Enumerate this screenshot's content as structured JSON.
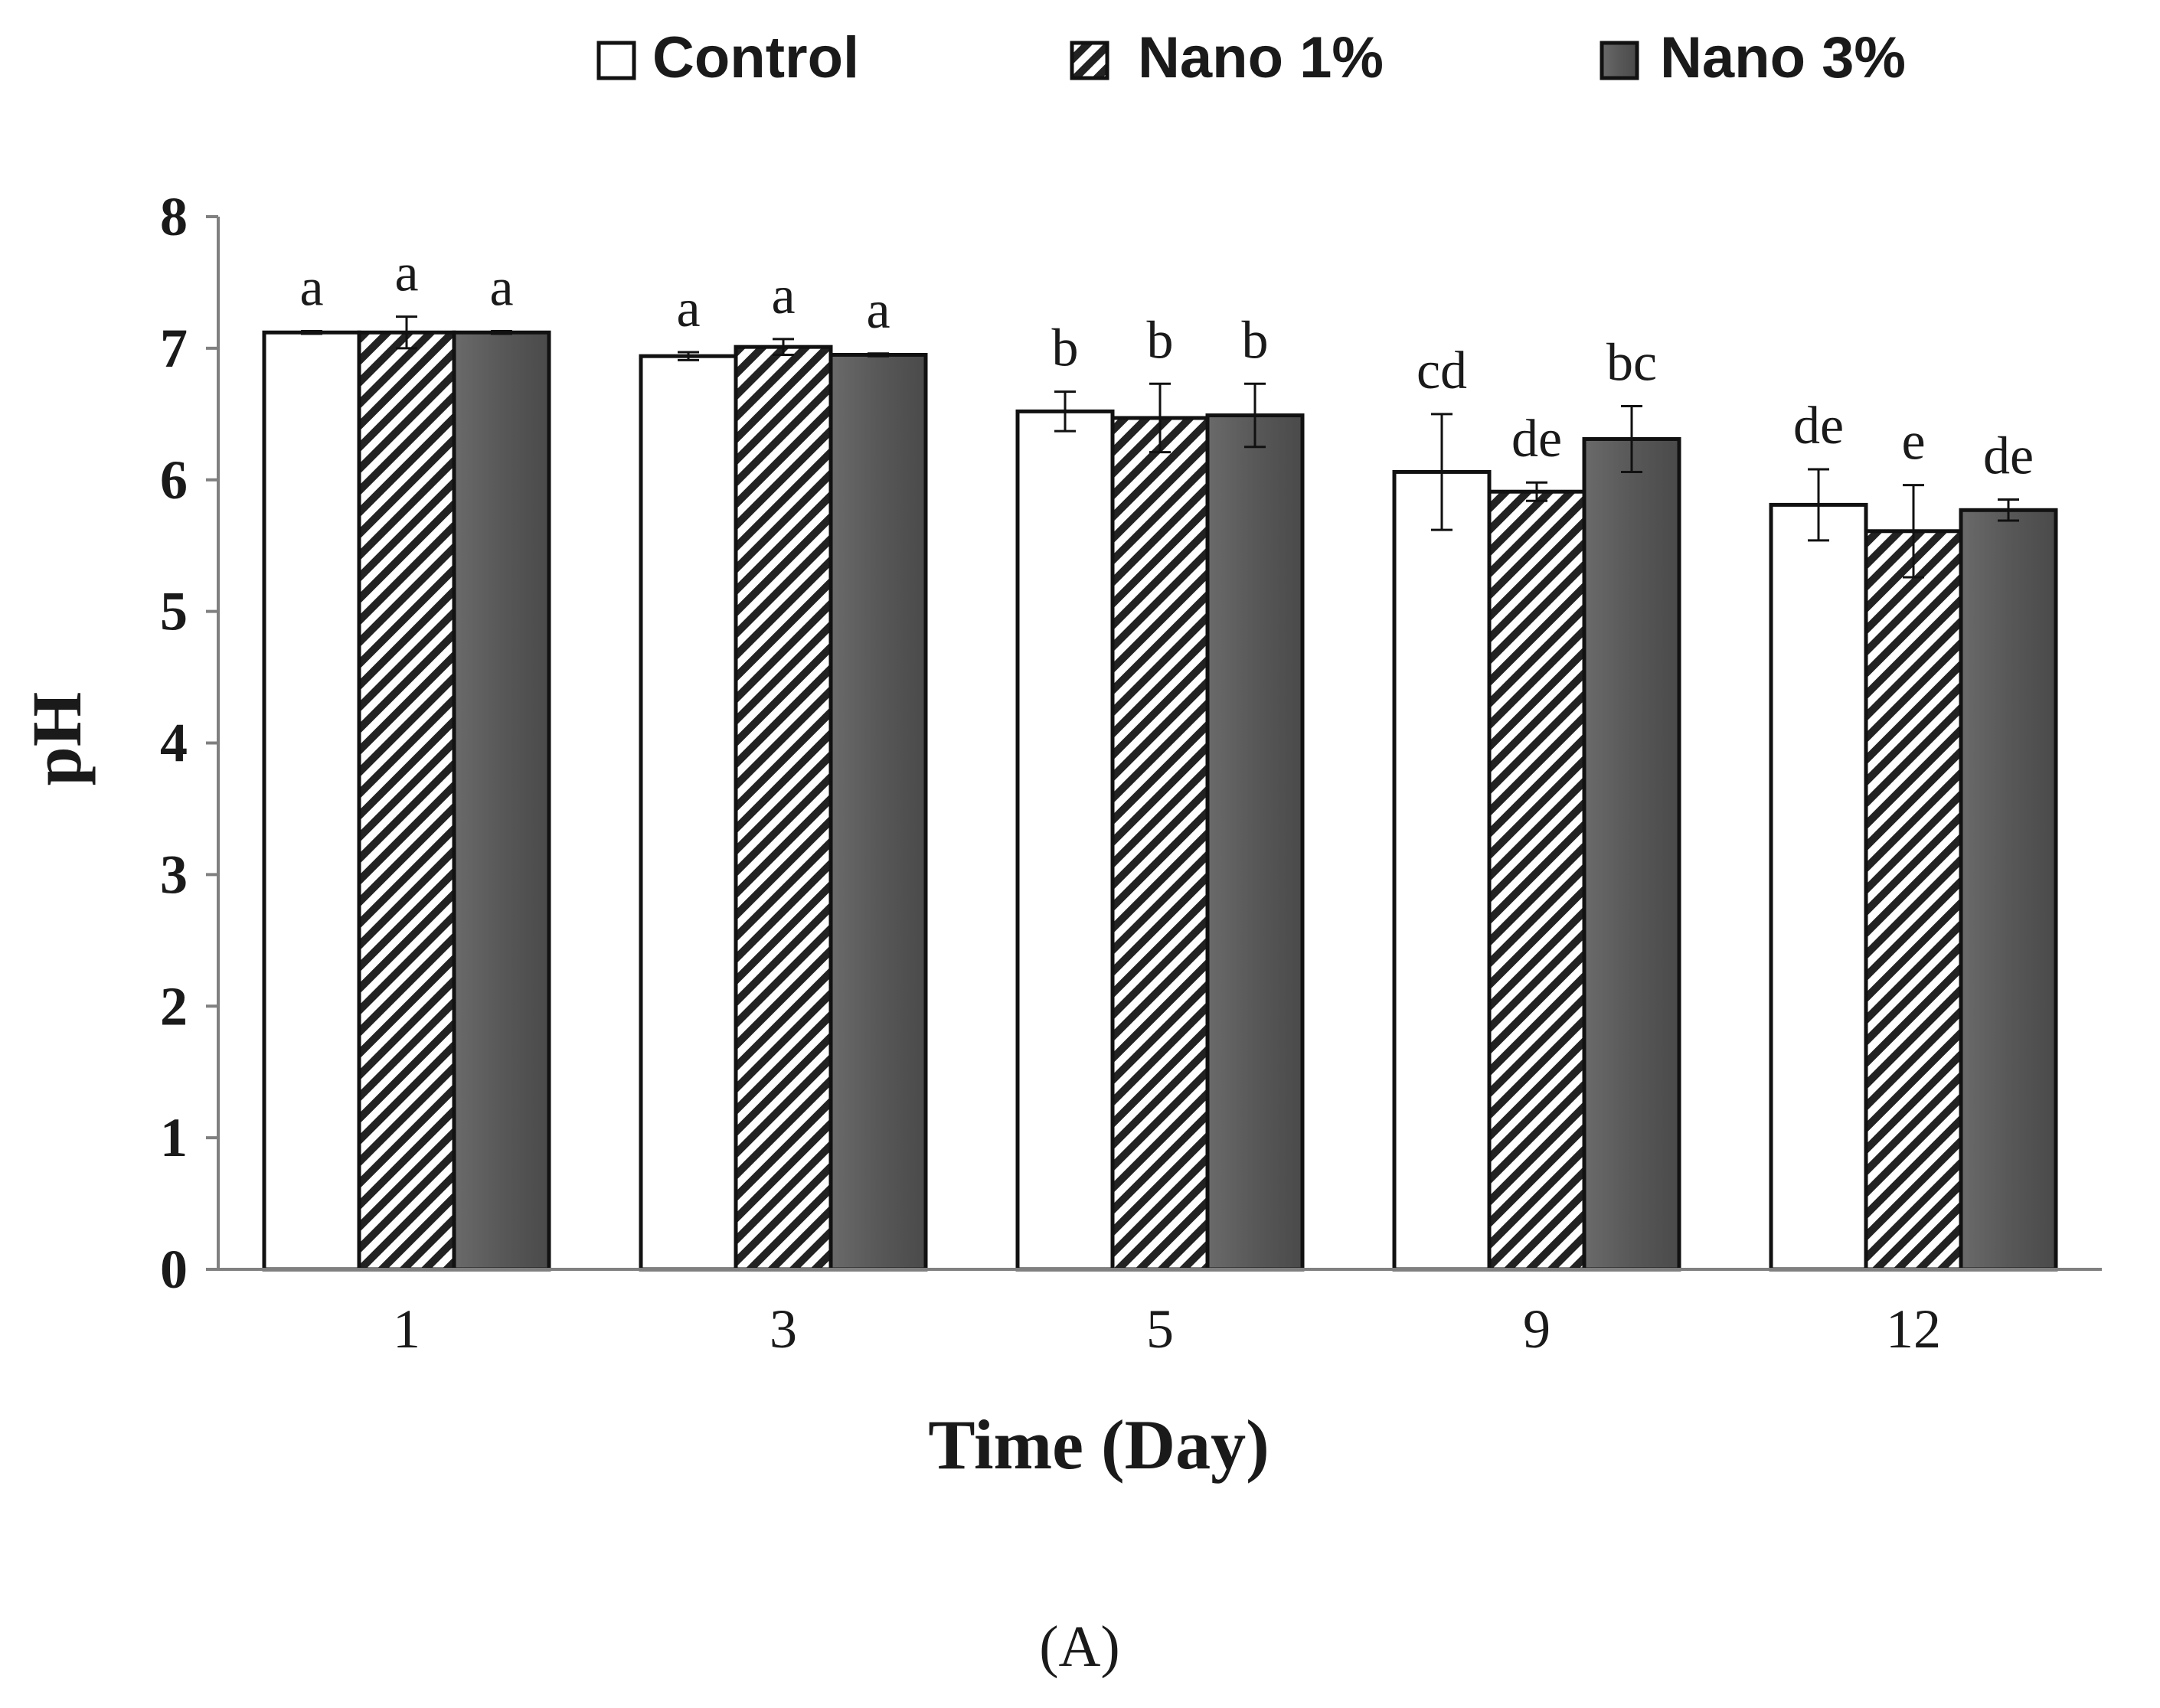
{
  "chart_data": {
    "type": "bar",
    "title": "",
    "xlabel": "Time (Day)",
    "ylabel": "pH",
    "ylim": [
      0,
      8
    ],
    "yticks": [
      "0",
      "1",
      "2",
      "3",
      "4",
      "5",
      "6",
      "7",
      "8"
    ],
    "categories": [
      "1",
      "3",
      "5",
      "9",
      "12"
    ],
    "legend_position": "top",
    "series": [
      {
        "name": "Control",
        "pattern": "white",
        "values": [
          7.12,
          6.94,
          6.52,
          6.06,
          5.81
        ],
        "errors": [
          0.01,
          0.03,
          0.15,
          0.44,
          0.27
        ],
        "letters": [
          "a",
          "a",
          "b",
          "cd",
          "de"
        ]
      },
      {
        "name": "Nano 1%",
        "pattern": "hatch",
        "values": [
          7.12,
          7.01,
          6.47,
          5.91,
          5.61
        ],
        "errors": [
          0.12,
          0.06,
          0.26,
          0.07,
          0.35
        ],
        "letters": [
          "a",
          "a",
          "b",
          "de",
          "e"
        ]
      },
      {
        "name": "Nano 3%",
        "pattern": "dark",
        "values": [
          7.12,
          6.95,
          6.49,
          6.31,
          5.77
        ],
        "errors": [
          0.01,
          0.01,
          0.24,
          0.25,
          0.08
        ],
        "letters": [
          "a",
          "a",
          "b",
          "bc",
          "de"
        ]
      }
    ],
    "panel_label": "(A)",
    "colors": {
      "dark": "#5c5c5c",
      "stroke": "#111111",
      "axis": "#808080"
    }
  }
}
